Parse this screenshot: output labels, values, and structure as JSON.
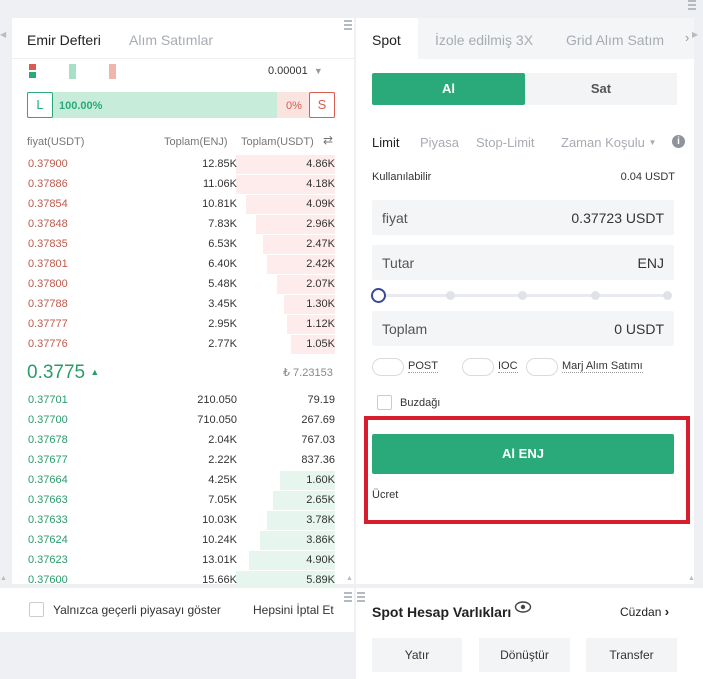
{
  "orderbook": {
    "tabs": [
      "Emir Defteri",
      "Alım Satımlar"
    ],
    "precision": "0.00001",
    "long_label": "L",
    "long_percent": "100.00%",
    "long_fraction": 0.89,
    "short_percent": "0%",
    "short_label": "S",
    "columns": {
      "price": "fiyat(USDT)",
      "amount": "Toplam(ENJ)",
      "total": "Toplam(USDT)"
    },
    "asks": [
      {
        "price": "0.37900",
        "amount": "12.85K",
        "total": "4.86K",
        "depth": 0.29
      },
      {
        "price": "0.37886",
        "amount": "11.06K",
        "total": "4.18K",
        "depth": 0.29
      },
      {
        "price": "0.37854",
        "amount": "10.81K",
        "total": "4.09K",
        "depth": 0.26
      },
      {
        "price": "0.37848",
        "amount": "7.83K",
        "total": "2.96K",
        "depth": 0.23
      },
      {
        "price": "0.37835",
        "amount": "6.53K",
        "total": "2.47K",
        "depth": 0.21
      },
      {
        "price": "0.37801",
        "amount": "6.40K",
        "total": "2.42K",
        "depth": 0.2
      },
      {
        "price": "0.37800",
        "amount": "5.48K",
        "total": "2.07K",
        "depth": 0.17
      },
      {
        "price": "0.37788",
        "amount": "3.45K",
        "total": "1.30K",
        "depth": 0.15
      },
      {
        "price": "0.37777",
        "amount": "2.95K",
        "total": "1.12K",
        "depth": 0.14
      },
      {
        "price": "0.37776",
        "amount": "2.77K",
        "total": "1.05K",
        "depth": 0.13
      }
    ],
    "last_price": "0.3775",
    "last_price_usd": "₺ 7.23153",
    "bids": [
      {
        "price": "0.37701",
        "amount": "210.050",
        "total": "79.19",
        "depth": 0.0
      },
      {
        "price": "0.37700",
        "amount": "710.050",
        "total": "267.69",
        "depth": 0.0
      },
      {
        "price": "0.37678",
        "amount": "2.04K",
        "total": "767.03",
        "depth": 0.0
      },
      {
        "price": "0.37677",
        "amount": "2.22K",
        "total": "837.36",
        "depth": 0.0
      },
      {
        "price": "0.37664",
        "amount": "4.25K",
        "total": "1.60K",
        "depth": 0.16
      },
      {
        "price": "0.37663",
        "amount": "7.05K",
        "total": "2.65K",
        "depth": 0.18
      },
      {
        "price": "0.37633",
        "amount": "10.03K",
        "total": "3.78K",
        "depth": 0.2
      },
      {
        "price": "0.37624",
        "amount": "10.24K",
        "total": "3.86K",
        "depth": 0.22
      },
      {
        "price": "0.37623",
        "amount": "13.01K",
        "total": "4.90K",
        "depth": 0.25
      },
      {
        "price": "0.37600",
        "amount": "15.66K",
        "total": "5.89K",
        "depth": 0.29
      }
    ]
  },
  "bottom_left": {
    "checkbox_label": "Yalnızca geçerli piyasayı göster",
    "cancel_all": "Hepsini İptal Et"
  },
  "trade": {
    "tabs": [
      "Spot",
      "İzole edilmiş 3X",
      "Grid Alım Satım"
    ],
    "buy_label": "Al",
    "sell_label": "Sat",
    "order_types": [
      "Limit",
      "Piyasa",
      "Stop-Limit",
      "Zaman Koşulu"
    ],
    "available_label": "Kullanılabilir",
    "available_value": "0.04 USDT",
    "price_label": "fiyat",
    "price_value": "0.37723 USDT",
    "amount_label": "Tutar",
    "amount_unit": "ENJ",
    "slider_level": 0,
    "total_label": "Toplam",
    "total_value": "0 USDT",
    "post_label": "POST",
    "ioc_label": "IOC",
    "margin_label": "Marj Alım Satımı",
    "iceberg_label": "Buzdağı",
    "submit_label": "Al ENJ",
    "fee_label": "Ücret"
  },
  "assets": {
    "title": "Spot Hesap Varlıkları",
    "wallet": "Cüzdan",
    "buttons": [
      "Yatır",
      "Dönüştür",
      "Transfer"
    ]
  },
  "colors": {
    "accent_green": "#2aaa7a",
    "ask_red": "#c1594a",
    "bid_green": "#2a9c6a",
    "highlight_red": "#d81e2c"
  }
}
